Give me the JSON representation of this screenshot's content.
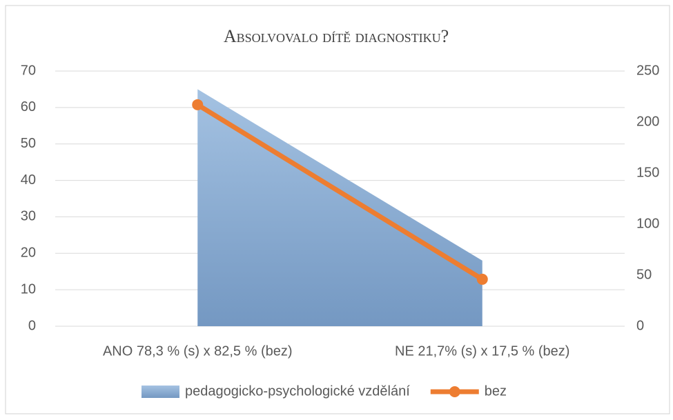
{
  "chart_data": {
    "type": "combo",
    "title": "Absolvovalo dítě diagnostiku?",
    "categories": [
      "ANO 78,3 % (s) x 82,5 % (bez)",
      "NE 21,7% (s) x 17,5 % (bez)"
    ],
    "series": [
      {
        "name": "pedagogicko-psychologické vzdělání",
        "type": "area",
        "color": "#8cb0d6",
        "values": [
          65,
          18
        ]
      },
      {
        "name": "bez",
        "type": "line",
        "axis": "y2",
        "color": "#ed7d31",
        "values": [
          217,
          46
        ]
      }
    ],
    "ylim": [
      0,
      70
    ],
    "yticks": [
      0,
      10,
      20,
      30,
      40,
      50,
      60,
      70
    ],
    "y2lim": [
      0,
      250
    ],
    "y2ticks": [
      0,
      50,
      100,
      150,
      200,
      250
    ],
    "grid": true,
    "legend": "bottom"
  }
}
